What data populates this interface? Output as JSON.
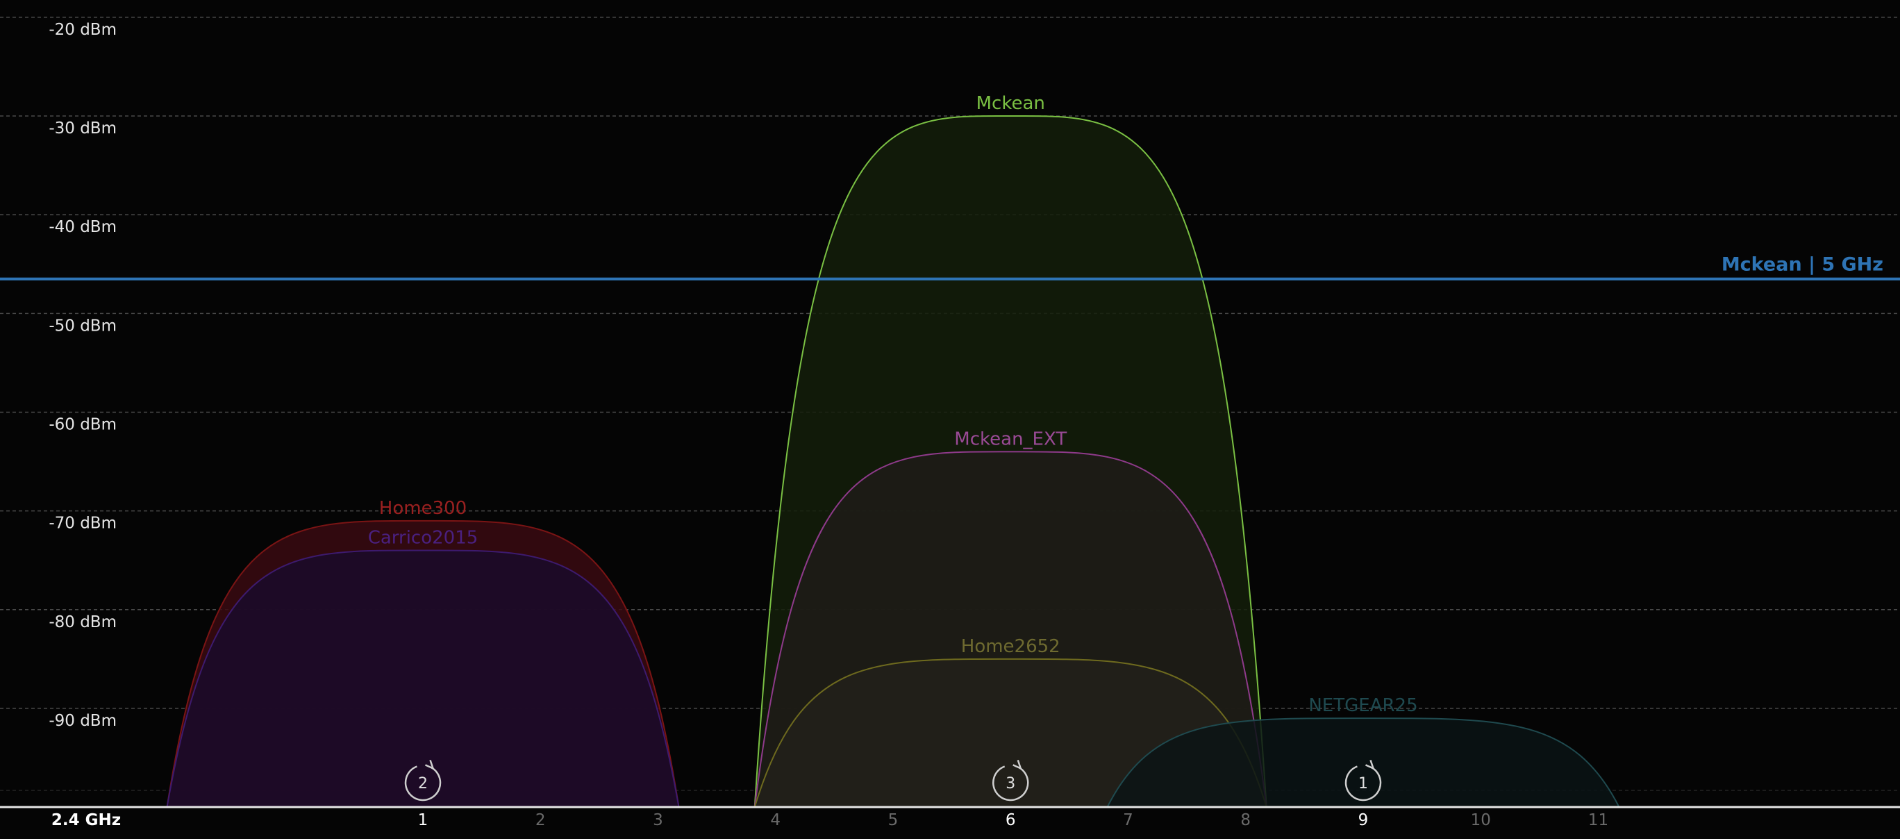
{
  "band_label": "2.4 GHz",
  "reference_line": {
    "label": "Mckean | 5 GHz",
    "dbm": -46.5,
    "color": "#2e74b5"
  },
  "chart_data": {
    "type": "area",
    "y_tick_labels": [
      "-20 dBm",
      "-30 dBm",
      "-40 dBm",
      "-50 dBm",
      "-60 dBm",
      "-70 dBm",
      "-80 dBm",
      "-90 dBm"
    ],
    "y_ticks": [
      -20,
      -30,
      -40,
      -50,
      -60,
      -70,
      -80,
      -90
    ],
    "ylim": [
      -100,
      -18.5
    ],
    "x_ticks": [
      {
        "label": "1",
        "channel": 1,
        "active": true
      },
      {
        "label": "2",
        "channel": 2,
        "active": false
      },
      {
        "label": "3",
        "channel": 3,
        "active": false
      },
      {
        "label": "4",
        "channel": 4,
        "active": false
      },
      {
        "label": "5",
        "channel": 5,
        "active": false
      },
      {
        "label": "6",
        "channel": 6,
        "active": true
      },
      {
        "label": "7",
        "channel": 7,
        "active": false
      },
      {
        "label": "8",
        "channel": 8,
        "active": false
      },
      {
        "label": "9",
        "channel": 9,
        "active": true
      },
      {
        "label": "10",
        "channel": 10,
        "active": false
      },
      {
        "label": "11",
        "channel": 11,
        "active": false
      }
    ],
    "grid": true,
    "series": [
      {
        "name": "Home300",
        "channel": 1,
        "dbm": -71,
        "color": "#7a1414",
        "fill": "#3a0a12",
        "label_color": "#9a2020"
      },
      {
        "name": "Carrico2015",
        "channel": 1,
        "dbm": -74,
        "color": "#3d1a6e",
        "fill": "#1a0a2a",
        "label_color": "#4a2080"
      },
      {
        "name": "Mckean",
        "channel": 6,
        "dbm": -30,
        "color": "#7ac043",
        "fill": "#141f0a",
        "label_color": "#7ac043"
      },
      {
        "name": "Mckean_EXT",
        "channel": 6,
        "dbm": -64,
        "color": "#8e3a8a",
        "fill": "#1e1c18",
        "label_color": "#9a4a96"
      },
      {
        "name": "Home2652",
        "channel": 6,
        "dbm": -85,
        "color": "#6e6a1e",
        "fill": "#22201a",
        "label_color": "#6e6a30"
      },
      {
        "name": "NETGEAR25",
        "channel": 9,
        "dbm": -91,
        "color": "#1f4a4f",
        "fill": "#0a1415",
        "label_color": "#1f4a50"
      }
    ],
    "channel_badges": [
      {
        "channel": 1,
        "count": "2"
      },
      {
        "channel": 6,
        "count": "3"
      },
      {
        "channel": 9,
        "count": "1"
      }
    ]
  }
}
